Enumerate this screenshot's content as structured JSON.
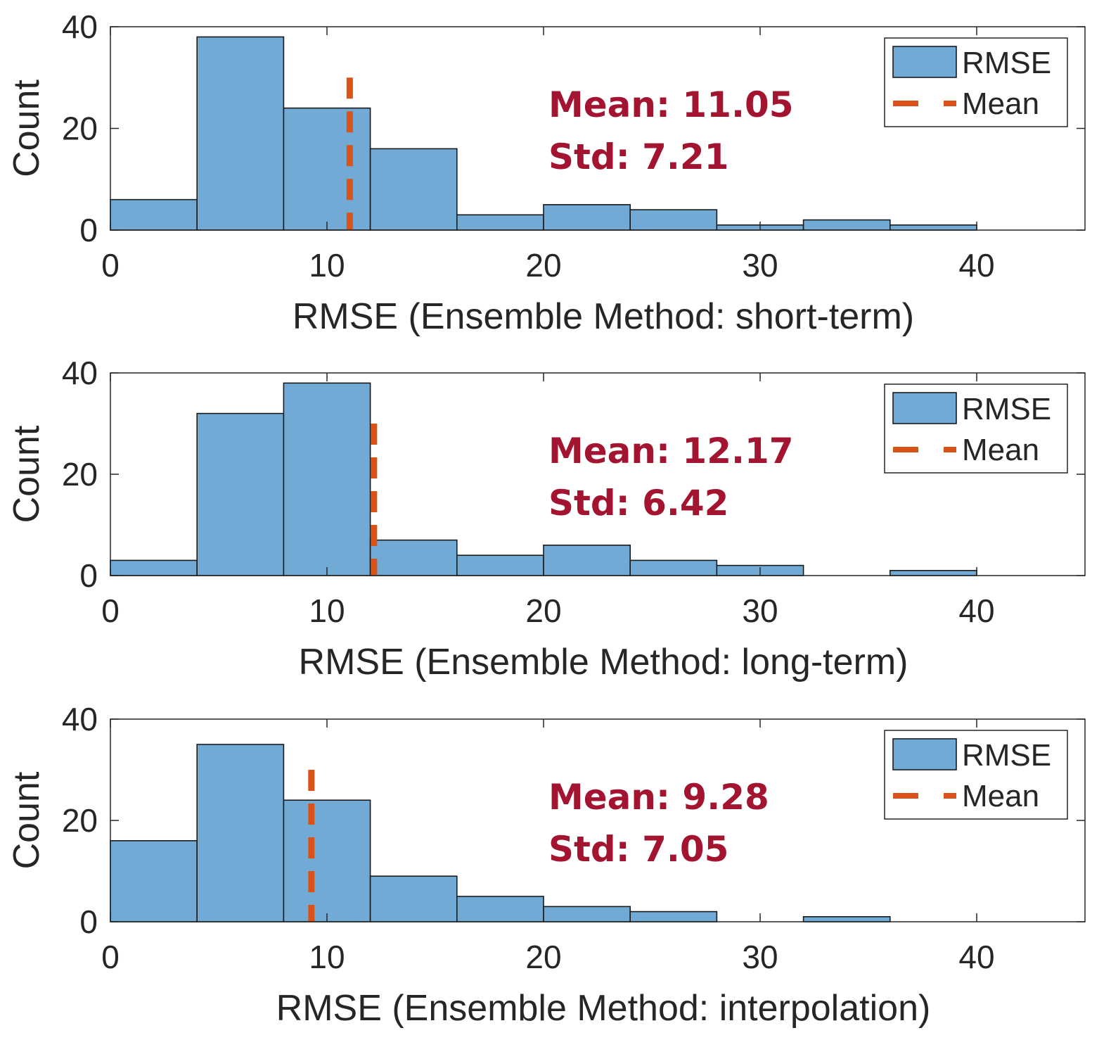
{
  "colors": {
    "bar": "#72aad6",
    "mean_line": "#d95319",
    "annotation": "#a2142f",
    "axis": "#262626"
  },
  "chart_data": [
    {
      "type": "bar",
      "xlabel": "RMSE (Ensemble Method: short-term)",
      "ylabel": "Count",
      "xlim": [
        0,
        45
      ],
      "ylim": [
        0,
        40
      ],
      "xticks": [
        "0",
        "10",
        "20",
        "30",
        "40"
      ],
      "yticks": [
        "0",
        "20",
        "40"
      ],
      "bin_edges": [
        0,
        4,
        8,
        12,
        16,
        20,
        24,
        28,
        32,
        36,
        40
      ],
      "series": [
        {
          "name": "RMSE",
          "values": [
            6,
            38,
            24,
            16,
            3,
            5,
            4,
            1,
            2,
            1
          ]
        }
      ],
      "mean_line": {
        "name": "Mean",
        "x": 11.05
      },
      "annotation": {
        "mean_text": "Mean: 11.05",
        "std_text": "Std: 7.21"
      },
      "legend": {
        "position": "top-right",
        "entries": [
          "RMSE",
          "Mean"
        ]
      }
    },
    {
      "type": "bar",
      "xlabel": "RMSE (Ensemble Method: long-term)",
      "ylabel": "Count",
      "xlim": [
        0,
        45
      ],
      "ylim": [
        0,
        40
      ],
      "xticks": [
        "0",
        "10",
        "20",
        "30",
        "40"
      ],
      "yticks": [
        "0",
        "20",
        "40"
      ],
      "bin_edges": [
        0,
        4,
        8,
        12,
        16,
        20,
        24,
        28,
        32,
        36,
        40
      ],
      "series": [
        {
          "name": "RMSE",
          "values": [
            3,
            32,
            38,
            7,
            4,
            6,
            3,
            2,
            0,
            1
          ]
        }
      ],
      "mean_line": {
        "name": "Mean",
        "x": 12.17
      },
      "annotation": {
        "mean_text": "Mean: 12.17",
        "std_text": "Std: 6.42"
      },
      "legend": {
        "position": "top-right",
        "entries": [
          "RMSE",
          "Mean"
        ]
      }
    },
    {
      "type": "bar",
      "xlabel": "RMSE (Ensemble Method: interpolation)",
      "ylabel": "Count",
      "xlim": [
        0,
        45
      ],
      "ylim": [
        0,
        40
      ],
      "xticks": [
        "0",
        "10",
        "20",
        "30",
        "40"
      ],
      "yticks": [
        "0",
        "20",
        "40"
      ],
      "bin_edges": [
        0,
        4,
        8,
        12,
        16,
        20,
        24,
        28,
        32,
        36
      ],
      "series": [
        {
          "name": "RMSE",
          "values": [
            16,
            35,
            24,
            9,
            5,
            3,
            2,
            0,
            1
          ]
        }
      ],
      "mean_line": {
        "name": "Mean",
        "x": 9.28
      },
      "annotation": {
        "mean_text": "Mean: 9.28",
        "std_text": "Std: 7.05"
      },
      "legend": {
        "position": "top-right",
        "entries": [
          "RMSE",
          "Mean"
        ]
      }
    }
  ]
}
